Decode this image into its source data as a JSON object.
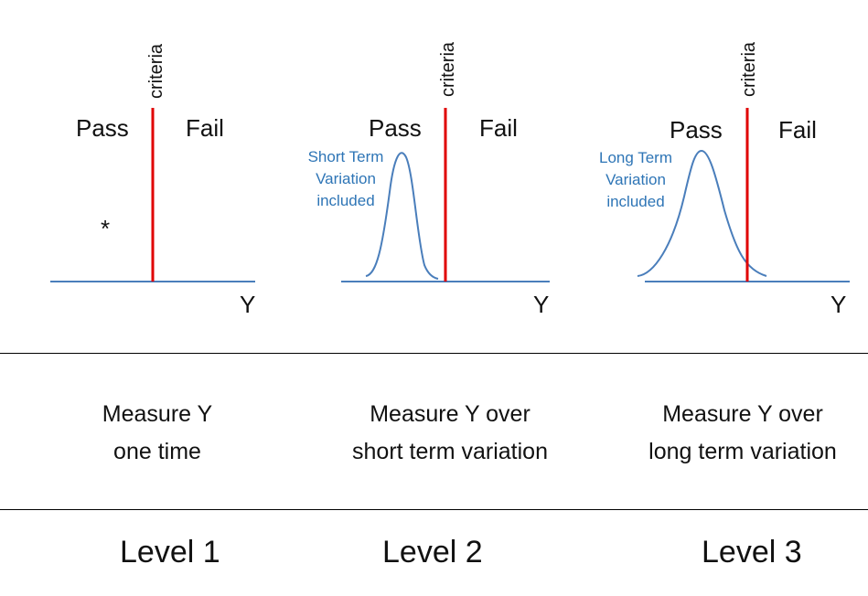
{
  "colors": {
    "axis": "#4A7EBB",
    "criteria_line": "#E00000",
    "annotation": "#2E75B6",
    "text": "#111111",
    "separator": "#000000"
  },
  "panels": [
    {
      "criteria_label": "criteria",
      "pass_label": "Pass",
      "fail_label": "Fail",
      "axis_label": "Y",
      "marker": "*",
      "annotation_lines": []
    },
    {
      "criteria_label": "criteria",
      "pass_label": "Pass",
      "fail_label": "Fail",
      "axis_label": "Y",
      "annotation_lines": [
        "Short Term",
        "Variation",
        "included"
      ]
    },
    {
      "criteria_label": "criteria",
      "pass_label": "Pass",
      "fail_label": "Fail",
      "axis_label": "Y",
      "annotation_lines": [
        "Long Term",
        "Variation",
        "included"
      ]
    }
  ],
  "descriptions": [
    [
      "Measure Y",
      "one time"
    ],
    [
      "Measure Y over",
      "short term variation"
    ],
    [
      "Measure Y over",
      "long term variation"
    ]
  ],
  "levels": [
    "Level 1",
    "Level 2",
    "Level 3"
  ]
}
